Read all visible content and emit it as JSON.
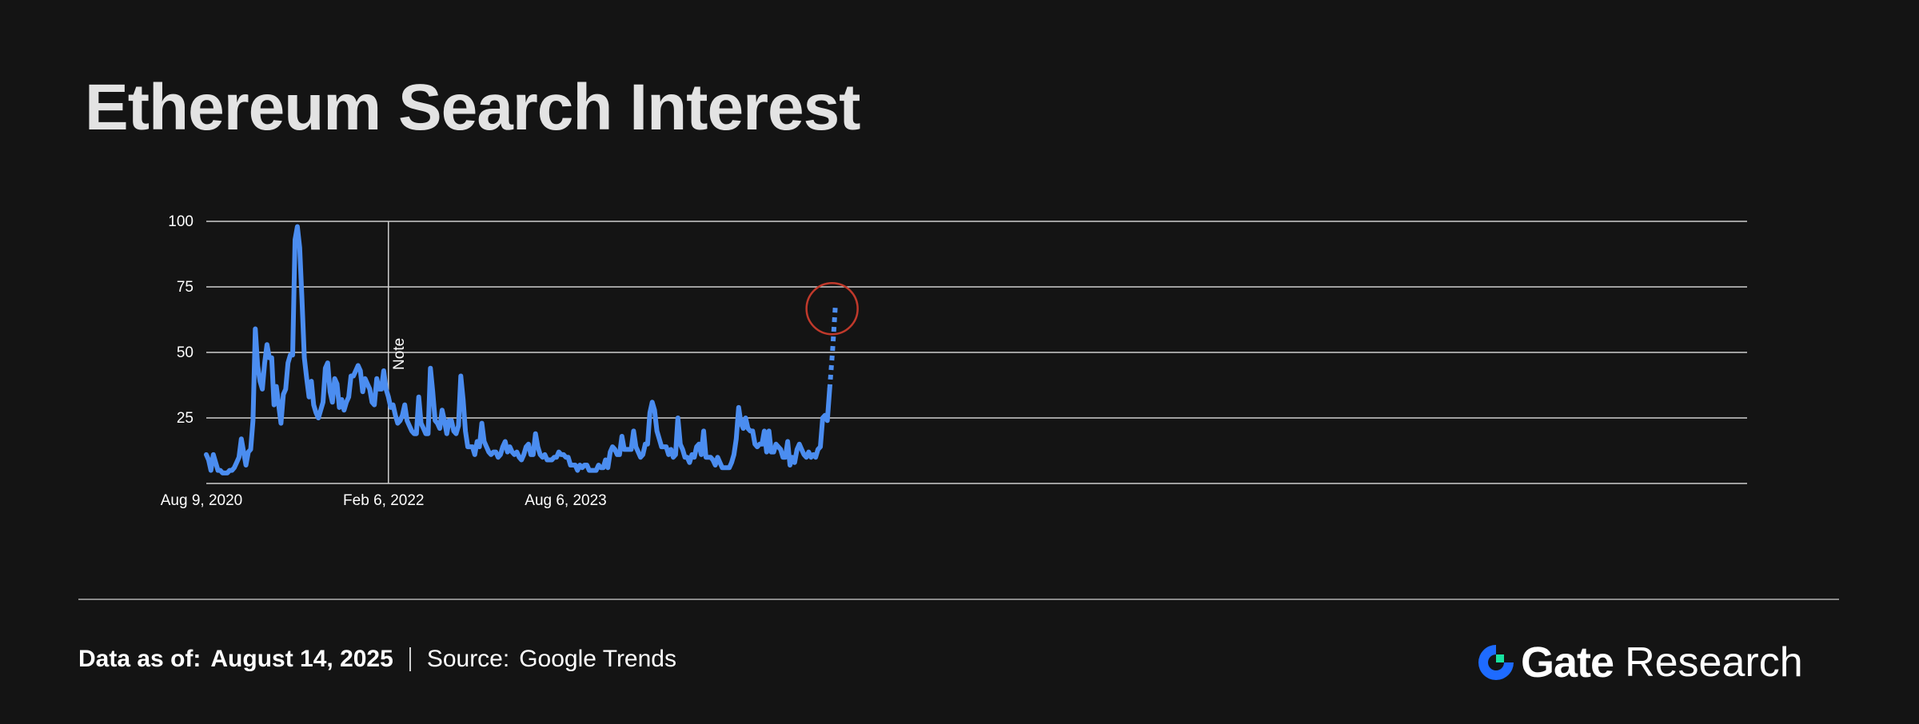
{
  "title": "Ethereum Search Interest",
  "chart_data": {
    "type": "line",
    "x_start": "Aug 9, 2020",
    "x_tick_labels": [
      "Aug 9, 2020",
      "Feb 6, 2022",
      "Aug 6, 2023"
    ],
    "y_ticks": [
      25,
      50,
      75,
      100
    ],
    "ylim": [
      0,
      100
    ],
    "grid": true,
    "legend": "none",
    "series": [
      {
        "values": [
          11,
          9,
          5,
          11,
          8,
          5,
          5,
          4,
          4,
          4,
          5,
          5,
          6,
          8,
          10,
          17,
          12,
          7,
          12,
          13,
          24,
          59,
          45,
          39,
          36,
          46,
          53,
          48,
          48,
          30,
          37,
          30,
          23,
          34,
          36,
          46,
          49,
          49,
          93,
          98,
          90,
          70,
          48,
          40,
          33,
          39,
          30,
          27,
          25,
          28,
          31,
          44,
          46,
          35,
          31,
          40,
          38,
          29,
          32,
          28,
          31,
          33,
          41,
          41,
          43,
          45,
          43,
          35,
          40,
          38,
          36,
          31,
          30,
          40,
          36,
          36,
          43,
          36,
          33,
          29,
          30,
          26,
          23,
          24,
          26,
          30,
          24,
          22,
          20,
          19,
          19,
          33,
          23,
          21,
          19,
          19,
          44,
          35,
          24,
          23,
          21,
          28,
          24,
          19,
          24,
          24,
          20,
          19,
          22,
          41,
          32,
          20,
          14,
          14,
          14,
          11,
          16,
          14,
          23,
          16,
          14,
          12,
          11,
          12,
          12,
          10,
          11,
          14,
          16,
          12,
          14,
          12,
          11,
          12,
          10,
          9,
          11,
          14,
          15,
          11,
          11,
          19,
          14,
          11,
          10,
          11,
          9,
          9,
          9,
          10,
          10,
          12,
          11,
          11,
          10,
          10,
          7,
          7,
          7,
          5,
          7,
          6,
          7,
          7,
          5,
          5,
          5,
          5,
          7,
          6,
          6,
          9,
          6,
          12,
          14,
          13,
          11,
          11,
          18,
          13,
          13,
          13,
          13,
          20,
          14,
          12,
          10,
          11,
          15,
          15,
          27,
          31,
          28,
          20,
          17,
          14,
          14,
          14,
          11,
          13,
          10,
          11,
          25,
          15,
          13,
          10,
          10,
          8,
          11,
          10,
          14,
          15,
          11,
          20,
          10,
          10,
          10,
          9,
          7,
          10,
          8,
          6,
          6,
          6,
          6,
          8,
          11,
          17,
          29,
          23,
          21,
          25,
          21,
          20,
          20,
          15,
          14,
          15,
          15,
          20,
          12,
          20,
          12,
          12,
          15,
          14,
          13,
          10,
          10,
          16,
          7,
          10,
          8,
          13,
          15,
          13,
          11,
          10,
          12,
          10,
          11,
          10,
          13,
          14,
          25,
          26,
          24,
          36
        ]
      }
    ],
    "forecast_tail_values": [
      36,
      50,
      67
    ],
    "annotations": [
      {
        "text": "Note",
        "x_label": "Feb 6, 2022"
      }
    ],
    "highlight": "circle around latest spike"
  },
  "footer": {
    "data_label": "Data as of:",
    "data_value": "August 14, 2025",
    "source_label": "Source:",
    "source_value": "Google Trends"
  },
  "brand": {
    "name": "Gate",
    "sub": "Research"
  },
  "colors": {
    "background": "#141414",
    "line": "#4b8df0",
    "grid": "#cfcfcf",
    "highlight": "#c0392b",
    "logo_blue": "#1e6bff",
    "logo_green": "#18e3a0"
  }
}
